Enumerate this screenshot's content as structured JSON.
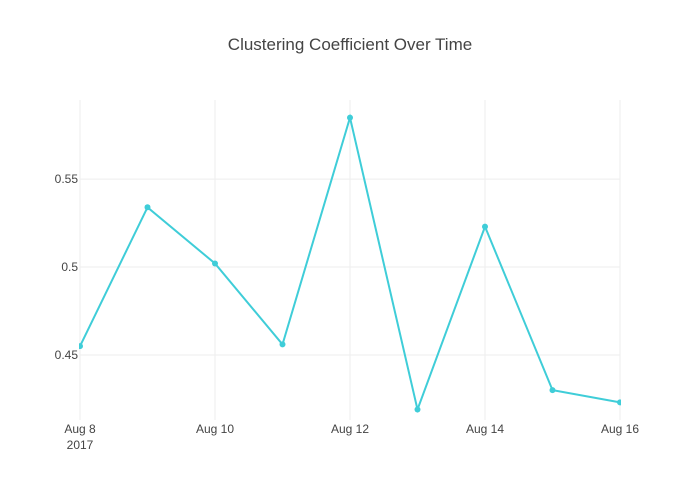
{
  "chart_data": {
    "type": "line",
    "title": "Clustering Coefficient Over Time",
    "xlabel": "",
    "ylabel": "",
    "x": [
      "2017-08-08",
      "2017-08-09",
      "2017-08-10",
      "2017-08-11",
      "2017-08-12",
      "2017-08-13",
      "2017-08-14",
      "2017-08-15",
      "2017-08-16"
    ],
    "series": [
      {
        "values": [
          0.455,
          0.534,
          0.502,
          0.456,
          0.585,
          0.419,
          0.523,
          0.43,
          0.423
        ]
      }
    ],
    "ylim": [
      0.413,
      0.595
    ],
    "x_ticks": [
      {
        "date": "2017-08-08",
        "label": "Aug 8",
        "sublabel": "2017"
      },
      {
        "date": "2017-08-10",
        "label": "Aug 10"
      },
      {
        "date": "2017-08-12",
        "label": "Aug 12"
      },
      {
        "date": "2017-08-14",
        "label": "Aug 14"
      },
      {
        "date": "2017-08-16",
        "label": "Aug 16"
      }
    ],
    "y_ticks": [
      {
        "value": 0.45,
        "label": "0.45"
      },
      {
        "value": 0.5,
        "label": "0.5"
      },
      {
        "value": 0.55,
        "label": "0.55"
      }
    ],
    "grid": true,
    "legend": false,
    "line_color": "#3fcdd8"
  }
}
